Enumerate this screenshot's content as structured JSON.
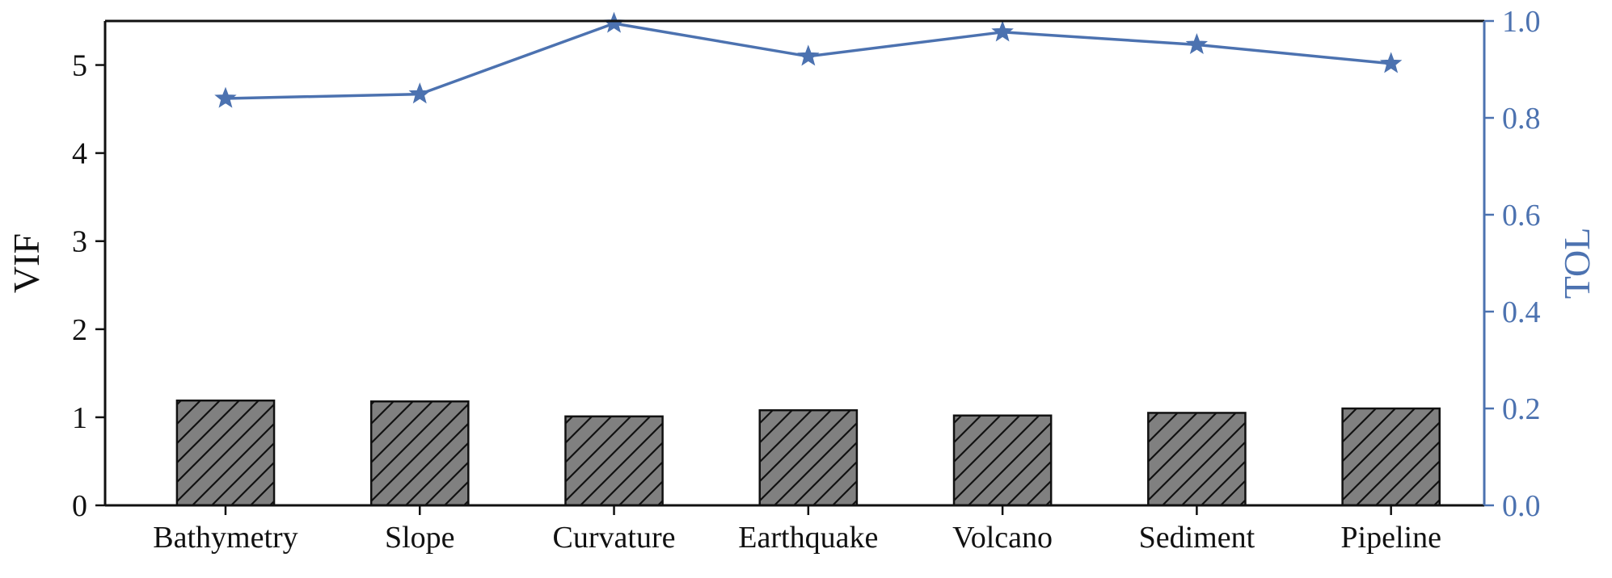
{
  "chart_data": {
    "type": "bar",
    "categories": [
      "Bathymetry",
      "Slope",
      "Curvature",
      "Earthquake",
      "Volcano",
      "Sediment",
      "Pipeline"
    ],
    "series": [
      {
        "axis": "left",
        "type": "bar",
        "values": [
          1.19,
          1.18,
          1.01,
          1.08,
          1.02,
          1.05,
          1.1
        ]
      },
      {
        "axis": "right",
        "type": "line",
        "marker": "star",
        "values": [
          0.84,
          0.849,
          0.995,
          0.927,
          0.977,
          0.951,
          0.912
        ]
      }
    ],
    "ylabel": "VIF",
    "ylim": [
      0,
      5.5
    ],
    "yticks": [
      0,
      1,
      2,
      3,
      4,
      5
    ],
    "y2label": "TOL",
    "y2lim": [
      0,
      1.0
    ],
    "y2ticks": [
      "0.0",
      "0.2",
      "0.4",
      "0.6",
      "0.8",
      "1.0"
    ],
    "bar_style": {
      "fill": "#808080",
      "edge": "#111111",
      "hatch": "///"
    },
    "line_color": "#4C72B0",
    "grid": false,
    "legend": "none"
  }
}
